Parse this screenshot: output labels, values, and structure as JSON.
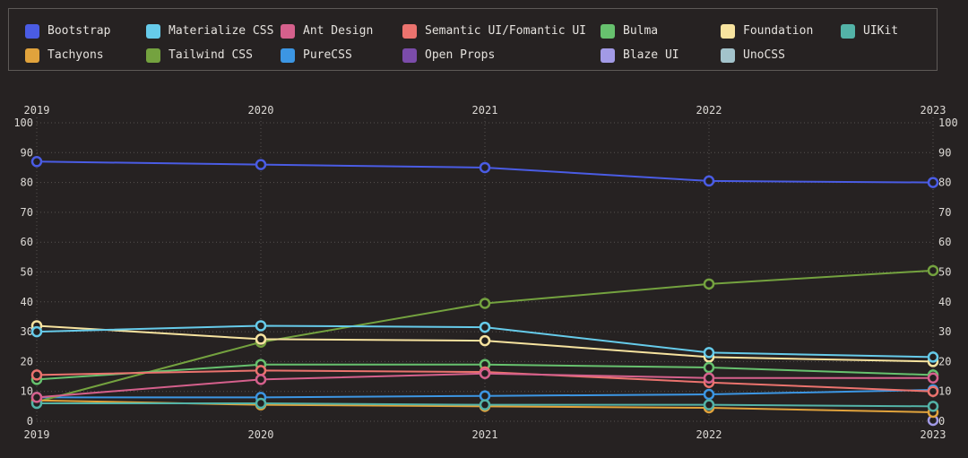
{
  "page": {
    "background": "#262222",
    "text_color": "#e4e1dd",
    "grid_color": "#807b76"
  },
  "legend": {
    "position": "top",
    "rows": 2,
    "columns": 7,
    "items": [
      {
        "label": "Bootstrap",
        "color": "#4a5ce4"
      },
      {
        "label": "Materialize CSS",
        "color": "#66cbea"
      },
      {
        "label": "Ant Design",
        "color": "#d5608c"
      },
      {
        "label": "Semantic UI/Fomantic UI",
        "color": "#eb736e"
      },
      {
        "label": "Bulma",
        "color": "#67c16e"
      },
      {
        "label": "Foundation",
        "color": "#f7e39f"
      },
      {
        "label": "UIKit",
        "color": "#53b3a7"
      },
      {
        "label": "Tachyons",
        "color": "#e1a33c"
      },
      {
        "label": "Tailwind CSS",
        "color": "#74a23f"
      },
      {
        "label": "PureCSS",
        "color": "#3c96e3"
      },
      {
        "label": "Open Props",
        "color": "#7b4caa"
      },
      {
        "label": "Blaze UI",
        "color": "#a29ae6"
      },
      {
        "label": "UnoCSS",
        "color": "#a3c3cb"
      }
    ]
  },
  "chart_data": {
    "type": "line",
    "title": "",
    "x": [
      2019,
      2020,
      2021,
      2022,
      2023
    ],
    "x_axis_labels": [
      "2019",
      "2020",
      "2021",
      "2022",
      "2023"
    ],
    "ylim": [
      0,
      100
    ],
    "y_tick_step": 10,
    "grid": "dotted",
    "axis_label_sides": {
      "x": [
        "top",
        "bottom"
      ],
      "y": [
        "left",
        "right"
      ]
    },
    "legend_position": "top",
    "marker": "open-circle",
    "series": [
      {
        "name": "Bootstrap",
        "color": "#4a5ce4",
        "values": [
          87,
          86,
          85,
          80.5,
          80
        ]
      },
      {
        "name": "Materialize CSS",
        "color": "#66cbea",
        "values": [
          30,
          32,
          31.5,
          23,
          21.5
        ]
      },
      {
        "name": "Ant Design",
        "color": "#d5608c",
        "values": [
          8,
          14,
          16,
          14.5,
          14.5
        ]
      },
      {
        "name": "Semantic UI/Fomantic UI",
        "color": "#eb736e",
        "values": [
          15.5,
          17,
          16.5,
          13,
          10
        ]
      },
      {
        "name": "Bulma",
        "color": "#67c16e",
        "values": [
          14,
          19,
          19,
          18,
          15.5
        ]
      },
      {
        "name": "Foundation",
        "color": "#f7e39f",
        "values": [
          32,
          27.5,
          27,
          21.5,
          20
        ]
      },
      {
        "name": "UIKit",
        "color": "#53b3a7",
        "values": [
          6,
          6,
          5.5,
          5.5,
          5
        ]
      },
      {
        "name": "Tachyons",
        "color": "#e1a33c",
        "values": [
          7,
          5.5,
          5,
          4.5,
          3
        ]
      },
      {
        "name": "Tailwind CSS",
        "color": "#74a23f",
        "values": [
          6.5,
          26.5,
          39.5,
          46,
          50.5
        ]
      },
      {
        "name": "PureCSS",
        "color": "#3c96e3",
        "values": [
          8,
          8,
          8.5,
          9,
          10.5
        ]
      },
      {
        "name": "Open Props",
        "color": "#7b4caa",
        "values": [
          null,
          null,
          null,
          null,
          null
        ]
      },
      {
        "name": "Blaze UI",
        "color": "#a29ae6",
        "values": [
          null,
          null,
          null,
          null,
          0.3
        ]
      },
      {
        "name": "UnoCSS",
        "color": "#a3c3cb",
        "values": [
          null,
          null,
          null,
          null,
          null
        ]
      }
    ]
  }
}
